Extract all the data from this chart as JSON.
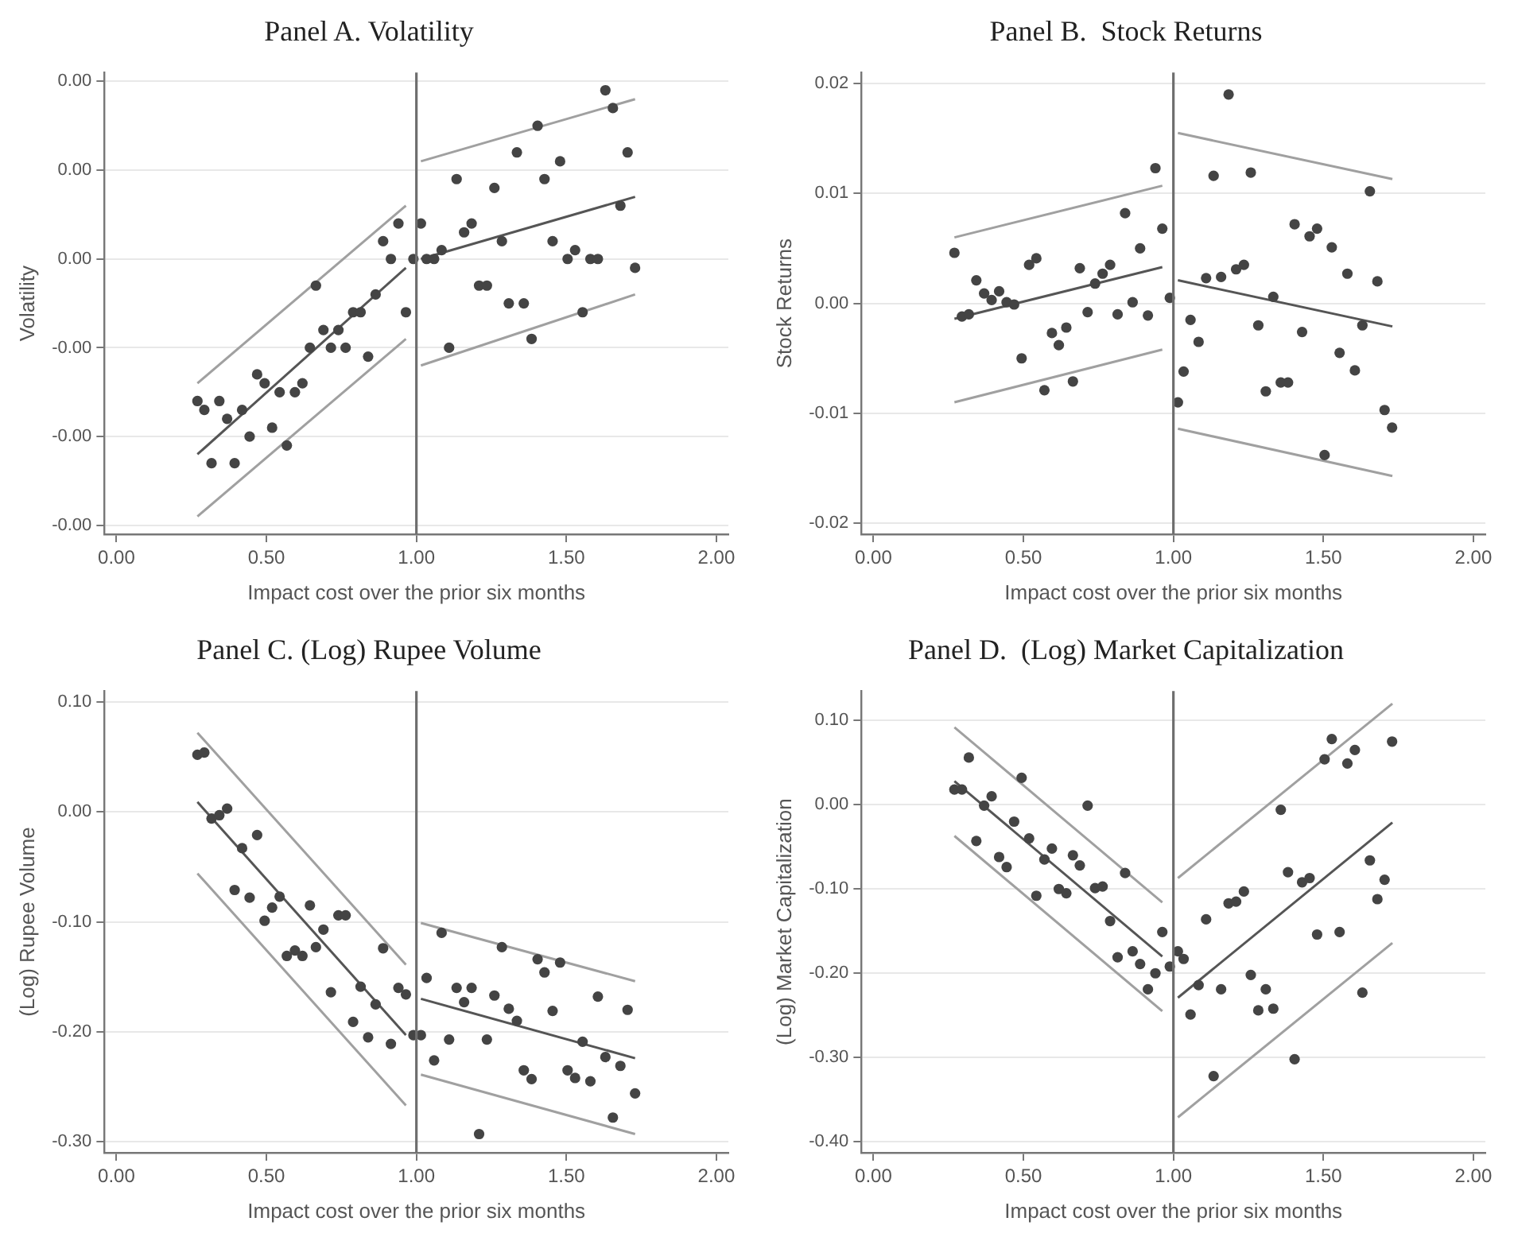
{
  "chart_data": [
    {
      "type": "scatter",
      "title": "Panel A. Volatility",
      "xlabel": "Impact cost over the prior six months",
      "ylabel": "Volatility",
      "xlim": [
        -0.04,
        2.04
      ],
      "xticks": [
        {
          "value": 0,
          "label": "0.00"
        },
        {
          "value": 0.5,
          "label": "0.50"
        },
        {
          "value": 1,
          "label": "1.00"
        },
        {
          "value": 1.5,
          "label": "1.50"
        },
        {
          "value": 2,
          "label": "2.00"
        }
      ],
      "ylim": [
        -0.0026,
        0.0026
      ],
      "yticks": [
        {
          "value": -0.0025,
          "label": "-0.00"
        },
        {
          "value": -0.0015,
          "label": "-0.00"
        },
        {
          "value": -0.0005,
          "label": "-0.00"
        },
        {
          "value": 0.0005,
          "label": "0.00"
        },
        {
          "value": 0.0015,
          "label": "0.00"
        },
        {
          "value": 0.0025,
          "label": "0.00"
        }
      ],
      "grid": "y",
      "ref_lines": [
        {
          "axis": "x",
          "value": 1,
          "color": "#6e6e6e"
        }
      ],
      "series": [
        {
          "type": "scatter",
          "color": "#444444",
          "marker": "circle",
          "x": [
            0.27,
            0.293,
            0.317,
            0.343,
            0.369,
            0.394,
            0.419,
            0.444,
            0.469,
            0.494,
            0.519,
            0.544,
            0.568,
            0.595,
            0.62,
            0.645,
            0.665,
            0.69,
            0.715,
            0.74,
            0.764,
            0.789,
            0.814,
            0.839,
            0.864,
            0.889,
            0.915,
            0.94,
            0.965,
            0.99,
            1.015,
            1.034,
            1.059,
            1.084,
            1.109,
            1.134,
            1.159,
            1.184,
            1.209,
            1.235,
            1.26,
            1.285,
            1.308,
            1.335,
            1.358,
            1.384,
            1.404,
            1.427,
            1.454,
            1.479,
            1.504,
            1.529,
            1.554,
            1.58,
            1.605,
            1.63,
            1.655,
            1.68,
            1.704,
            1.729
          ],
          "values": [
            -0.0011,
            -0.0012,
            -0.0018,
            -0.0011,
            -0.0013,
            -0.0018,
            -0.0012,
            -0.0015,
            -0.0008,
            -0.0009,
            -0.0014,
            -0.001,
            -0.0016,
            -0.001,
            -0.0009,
            -0.0005,
            0.0002,
            -0.0003,
            -0.0005,
            -0.0003,
            -0.0005,
            -0.0001,
            -0.0001,
            -0.0006,
            0.0001,
            0.0007,
            0.0005,
            0.0009,
            -0.0001,
            0.0005,
            0.0009,
            0.0005,
            0.0005,
            0.0006,
            -0.0005,
            0.0014,
            0.0008,
            0.0009,
            0.0002,
            0.0002,
            0.0013,
            0.0007,
            0.0,
            0.0017,
            0.0,
            -0.0004,
            0.002,
            0.0014,
            0.0007,
            0.0016,
            0.0005,
            0.0006,
            -0.0001,
            0.0005,
            0.0005,
            0.0024,
            0.0022,
            0.0011,
            0.0017,
            0.0004
          ]
        },
        {
          "type": "line",
          "color": "#555555",
          "marker": "none",
          "x": [
            0.27,
            0.965
          ],
          "values": [
            -0.0017,
            0.0004
          ]
        },
        {
          "type": "line",
          "color": "#a0a0a0",
          "marker": "none",
          "x": [
            0.27,
            0.965
          ],
          "values": [
            -0.0009,
            0.0011
          ]
        },
        {
          "type": "line",
          "color": "#a0a0a0",
          "marker": "none",
          "x": [
            0.27,
            0.965
          ],
          "values": [
            -0.0024,
            -0.0004
          ]
        },
        {
          "type": "line",
          "color": "#555555",
          "marker": "none",
          "x": [
            1.015,
            1.729
          ],
          "values": [
            0.0005,
            0.0012
          ]
        },
        {
          "type": "line",
          "color": "#a0a0a0",
          "marker": "none",
          "x": [
            1.015,
            1.729
          ],
          "values": [
            0.0016,
            0.0023
          ]
        },
        {
          "type": "line",
          "color": "#a0a0a0",
          "marker": "none",
          "x": [
            1.015,
            1.729
          ],
          "values": [
            -0.0007,
            0.0001
          ]
        }
      ]
    },
    {
      "type": "scatter",
      "title": "Panel B.  Stock Returns",
      "xlabel": "Impact cost over the prior six months",
      "ylabel": "Stock Returns",
      "xlim": [
        -0.04,
        2.04
      ],
      "xticks": [
        {
          "value": 0,
          "label": "0.00"
        },
        {
          "value": 0.5,
          "label": "0.50"
        },
        {
          "value": 1,
          "label": "1.00"
        },
        {
          "value": 1.5,
          "label": "1.50"
        },
        {
          "value": 2,
          "label": "2.00"
        }
      ],
      "ylim": [
        -0.021,
        0.021
      ],
      "yticks": [
        {
          "value": -0.02,
          "label": "-0.02"
        },
        {
          "value": -0.01,
          "label": "-0.01"
        },
        {
          "value": 0,
          "label": "0.00"
        },
        {
          "value": 0.01,
          "label": "0.01"
        },
        {
          "value": 0.02,
          "label": "0.02"
        }
      ],
      "grid": "y",
      "ref_lines": [
        {
          "axis": "x",
          "value": 1,
          "color": "#6e6e6e"
        }
      ],
      "series": [
        {
          "type": "scatter",
          "color": "#444444",
          "marker": "circle",
          "x": [
            0.27,
            0.295,
            0.318,
            0.343,
            0.369,
            0.394,
            0.419,
            0.444,
            0.469,
            0.494,
            0.519,
            0.543,
            0.57,
            0.595,
            0.618,
            0.643,
            0.665,
            0.688,
            0.714,
            0.739,
            0.764,
            0.789,
            0.814,
            0.839,
            0.864,
            0.889,
            0.915,
            0.94,
            0.963,
            0.988,
            1.015,
            1.034,
            1.057,
            1.084,
            1.109,
            1.134,
            1.159,
            1.184,
            1.209,
            1.235,
            1.258,
            1.283,
            1.308,
            1.333,
            1.358,
            1.382,
            1.404,
            1.429,
            1.454,
            1.479,
            1.504,
            1.528,
            1.554,
            1.58,
            1.605,
            1.63,
            1.655,
            1.68,
            1.704,
            1.729
          ],
          "values": [
            0.0046,
            -0.0012,
            -0.001,
            0.0021,
            0.0009,
            0.0003,
            0.0011,
            0.0001,
            -0.0001,
            -0.005,
            0.0035,
            0.0041,
            -0.0079,
            -0.0027,
            -0.0038,
            -0.0022,
            -0.0071,
            0.0032,
            -0.0008,
            0.0018,
            0.0027,
            0.0035,
            -0.001,
            0.0082,
            0.0001,
            0.005,
            -0.0011,
            0.0123,
            0.0068,
            0.0005,
            -0.009,
            -0.0062,
            -0.0015,
            -0.0035,
            0.0023,
            0.0116,
            0.0024,
            0.019,
            0.0031,
            0.0035,
            0.0119,
            -0.002,
            -0.008,
            0.0006,
            -0.0072,
            -0.0072,
            0.0072,
            -0.0026,
            0.0061,
            0.0068,
            -0.0138,
            0.0051,
            -0.0045,
            0.0027,
            -0.0061,
            -0.002,
            0.0102,
            0.002,
            -0.0097,
            -0.0113
          ]
        },
        {
          "type": "line",
          "color": "#555555",
          "marker": "none",
          "x": [
            0.27,
            0.963
          ],
          "values": [
            -0.0014,
            0.0033
          ]
        },
        {
          "type": "line",
          "color": "#a0a0a0",
          "marker": "none",
          "x": [
            0.27,
            0.963
          ],
          "values": [
            0.006,
            0.0107
          ]
        },
        {
          "type": "line",
          "color": "#a0a0a0",
          "marker": "none",
          "x": [
            0.27,
            0.963
          ],
          "values": [
            -0.009,
            -0.0042
          ]
        },
        {
          "type": "line",
          "color": "#555555",
          "marker": "none",
          "x": [
            1.015,
            1.73
          ],
          "values": [
            0.0021,
            -0.0021
          ]
        },
        {
          "type": "line",
          "color": "#a0a0a0",
          "marker": "none",
          "x": [
            1.015,
            1.73
          ],
          "values": [
            0.0155,
            0.0113
          ]
        },
        {
          "type": "line",
          "color": "#a0a0a0",
          "marker": "none",
          "x": [
            1.015,
            1.73
          ],
          "values": [
            -0.0114,
            -0.0157
          ]
        }
      ]
    },
    {
      "type": "scatter",
      "title": "Panel C. (Log) Rupee Volume",
      "xlabel": "Impact cost over the prior six months",
      "ylabel": "(Log) Rupee Volume",
      "xlim": [
        -0.04,
        2.04
      ],
      "xticks": [
        {
          "value": 0,
          "label": "0.00"
        },
        {
          "value": 0.5,
          "label": "0.50"
        },
        {
          "value": 1,
          "label": "1.00"
        },
        {
          "value": 1.5,
          "label": "1.50"
        },
        {
          "value": 2,
          "label": "2.00"
        }
      ],
      "ylim": [
        -0.31,
        0.11
      ],
      "yticks": [
        {
          "value": -0.3,
          "label": "-0.30"
        },
        {
          "value": -0.2,
          "label": "-0.20"
        },
        {
          "value": -0.1,
          "label": "-0.10"
        },
        {
          "value": 0,
          "label": "0.00"
        },
        {
          "value": 0.1,
          "label": "0.10"
        }
      ],
      "grid": "y",
      "ref_lines": [
        {
          "axis": "x",
          "value": 1,
          "color": "#6e6e6e"
        }
      ],
      "series": [
        {
          "type": "scatter",
          "color": "#444444",
          "marker": "circle",
          "x": [
            0.27,
            0.293,
            0.317,
            0.343,
            0.369,
            0.394,
            0.419,
            0.444,
            0.469,
            0.494,
            0.519,
            0.544,
            0.568,
            0.595,
            0.62,
            0.645,
            0.665,
            0.69,
            0.715,
            0.74,
            0.764,
            0.789,
            0.814,
            0.839,
            0.864,
            0.889,
            0.915,
            0.94,
            0.965,
            0.99,
            1.015,
            1.034,
            1.059,
            1.084,
            1.109,
            1.134,
            1.159,
            1.184,
            1.209,
            1.235,
            1.26,
            1.285,
            1.308,
            1.335,
            1.358,
            1.384,
            1.404,
            1.427,
            1.454,
            1.479,
            1.504,
            1.529,
            1.554,
            1.58,
            1.605,
            1.63,
            1.655,
            1.68,
            1.704,
            1.729
          ],
          "values": [
            0.052,
            0.054,
            -0.006,
            -0.003,
            0.003,
            -0.071,
            -0.033,
            -0.078,
            -0.021,
            -0.099,
            -0.087,
            -0.077,
            -0.131,
            -0.126,
            -0.131,
            -0.085,
            -0.123,
            -0.107,
            -0.164,
            -0.094,
            -0.094,
            -0.191,
            -0.159,
            -0.205,
            -0.175,
            -0.124,
            -0.211,
            -0.16,
            -0.166,
            -0.203,
            -0.203,
            -0.151,
            -0.226,
            -0.11,
            -0.207,
            -0.16,
            -0.173,
            -0.16,
            -0.293,
            -0.207,
            -0.167,
            -0.123,
            -0.179,
            -0.19,
            -0.235,
            -0.243,
            -0.134,
            -0.146,
            -0.181,
            -0.137,
            -0.235,
            -0.242,
            -0.209,
            -0.245,
            -0.168,
            -0.223,
            -0.278,
            -0.231,
            -0.18,
            -0.256
          ]
        },
        {
          "type": "line",
          "color": "#555555",
          "marker": "none",
          "x": [
            0.27,
            0.965
          ],
          "values": [
            0.009,
            -0.203
          ]
        },
        {
          "type": "line",
          "color": "#a0a0a0",
          "marker": "none",
          "x": [
            0.27,
            0.965
          ],
          "values": [
            0.072,
            -0.139
          ]
        },
        {
          "type": "line",
          "color": "#a0a0a0",
          "marker": "none",
          "x": [
            0.27,
            0.965
          ],
          "values": [
            -0.056,
            -0.267
          ]
        },
        {
          "type": "line",
          "color": "#555555",
          "marker": "none",
          "x": [
            1.015,
            1.729
          ],
          "values": [
            -0.17,
            -0.224
          ]
        },
        {
          "type": "line",
          "color": "#a0a0a0",
          "marker": "none",
          "x": [
            1.015,
            1.729
          ],
          "values": [
            -0.101,
            -0.154
          ]
        },
        {
          "type": "line",
          "color": "#a0a0a0",
          "marker": "none",
          "x": [
            1.015,
            1.729
          ],
          "values": [
            -0.239,
            -0.293
          ]
        }
      ]
    },
    {
      "type": "scatter",
      "title": "Panel D.  (Log) Market Capitalization",
      "xlabel": "Impact cost over the prior six months",
      "ylabel": "(Log) Market Capitalization",
      "xlim": [
        -0.04,
        2.04
      ],
      "xticks": [
        {
          "value": 0,
          "label": "0.00"
        },
        {
          "value": 0.5,
          "label": "0.50"
        },
        {
          "value": 1,
          "label": "1.00"
        },
        {
          "value": 1.5,
          "label": "1.50"
        },
        {
          "value": 2,
          "label": "2.00"
        }
      ],
      "ylim": [
        -0.413,
        0.135
      ],
      "yticks": [
        {
          "value": -0.4,
          "label": "-0.40"
        },
        {
          "value": -0.3,
          "label": "-0.30"
        },
        {
          "value": -0.2,
          "label": "-0.20"
        },
        {
          "value": -0.1,
          "label": "-0.10"
        },
        {
          "value": 0,
          "label": "0.00"
        },
        {
          "value": 0.1,
          "label": "0.10"
        }
      ],
      "grid": "y",
      "ref_lines": [
        {
          "axis": "x",
          "value": 1,
          "color": "#6e6e6e"
        }
      ],
      "series": [
        {
          "type": "scatter",
          "color": "#444444",
          "marker": "circle",
          "x": [
            0.27,
            0.295,
            0.318,
            0.343,
            0.369,
            0.394,
            0.419,
            0.444,
            0.469,
            0.494,
            0.519,
            0.543,
            0.57,
            0.595,
            0.618,
            0.643,
            0.665,
            0.688,
            0.714,
            0.739,
            0.764,
            0.789,
            0.814,
            0.839,
            0.864,
            0.889,
            0.915,
            0.94,
            0.963,
            0.988,
            1.015,
            1.034,
            1.057,
            1.084,
            1.109,
            1.134,
            1.159,
            1.184,
            1.209,
            1.235,
            1.258,
            1.283,
            1.308,
            1.333,
            1.358,
            1.382,
            1.404,
            1.429,
            1.454,
            1.479,
            1.504,
            1.528,
            1.554,
            1.58,
            1.605,
            1.63,
            1.655,
            1.68,
            1.704,
            1.729
          ],
          "values": [
            0.018,
            0.018,
            0.056,
            -0.043,
            -0.001,
            0.01,
            -0.062,
            -0.074,
            -0.02,
            0.032,
            -0.04,
            -0.108,
            -0.065,
            -0.052,
            -0.1,
            -0.105,
            -0.06,
            -0.072,
            -0.001,
            -0.099,
            -0.097,
            -0.138,
            -0.181,
            -0.081,
            -0.174,
            -0.189,
            -0.219,
            -0.2,
            -0.151,
            -0.192,
            -0.174,
            -0.183,
            -0.249,
            -0.214,
            -0.136,
            -0.322,
            -0.219,
            -0.117,
            -0.115,
            -0.103,
            -0.202,
            -0.244,
            -0.219,
            -0.242,
            -0.006,
            -0.08,
            -0.302,
            -0.092,
            -0.087,
            -0.154,
            0.054,
            0.078,
            -0.151,
            0.049,
            0.065,
            -0.223,
            -0.066,
            -0.112,
            -0.089,
            0.075
          ]
        },
        {
          "type": "line",
          "color": "#555555",
          "marker": "none",
          "x": [
            0.27,
            0.963
          ],
          "values": [
            0.028,
            -0.18
          ]
        },
        {
          "type": "line",
          "color": "#a0a0a0",
          "marker": "none",
          "x": [
            0.27,
            0.963
          ],
          "values": [
            0.092,
            -0.116
          ]
        },
        {
          "type": "line",
          "color": "#a0a0a0",
          "marker": "none",
          "x": [
            0.27,
            0.963
          ],
          "values": [
            -0.037,
            -0.245
          ]
        },
        {
          "type": "line",
          "color": "#555555",
          "marker": "none",
          "x": [
            1.015,
            1.73
          ],
          "values": [
            -0.229,
            -0.021
          ]
        },
        {
          "type": "line",
          "color": "#a0a0a0",
          "marker": "none",
          "x": [
            1.015,
            1.73
          ],
          "values": [
            -0.087,
            0.12
          ]
        },
        {
          "type": "line",
          "color": "#a0a0a0",
          "marker": "none",
          "x": [
            1.015,
            1.73
          ],
          "values": [
            -0.371,
            -0.164
          ]
        }
      ]
    }
  ]
}
